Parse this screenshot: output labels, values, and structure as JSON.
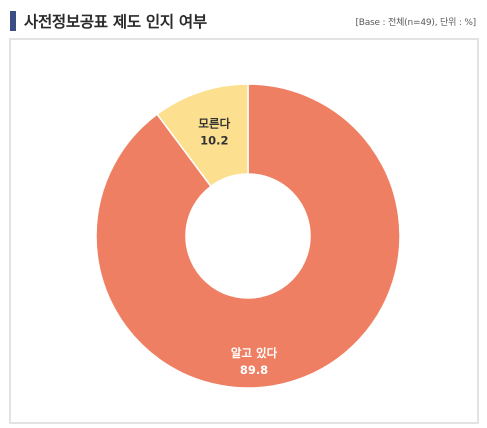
{
  "header": {
    "title": "사전정보공표 제도 인지 여부",
    "meta": "[Base : 전체(n=49), 단위 : %]"
  },
  "colors": {
    "title_bar": "#3a4d84",
    "aware": "#ef7f63",
    "unaware": "#fde08f",
    "label_on_aware": "#ffffff",
    "label_on_unaware": "#333333"
  },
  "chart_data": {
    "type": "pie",
    "variant": "donut",
    "title": "사전정보공표 제도 인지 여부",
    "unit": "%",
    "base": "전체(n=49)",
    "slices": [
      {
        "label": "알고 있다",
        "value": 89.8,
        "value_text": "89.8",
        "color": "#ef7f63"
      },
      {
        "label": "모른다",
        "value": 10.2,
        "value_text": "10.2",
        "color": "#fde08f"
      }
    ],
    "start_angle_deg": 0,
    "direction": "clockwise",
    "legend": "none"
  }
}
